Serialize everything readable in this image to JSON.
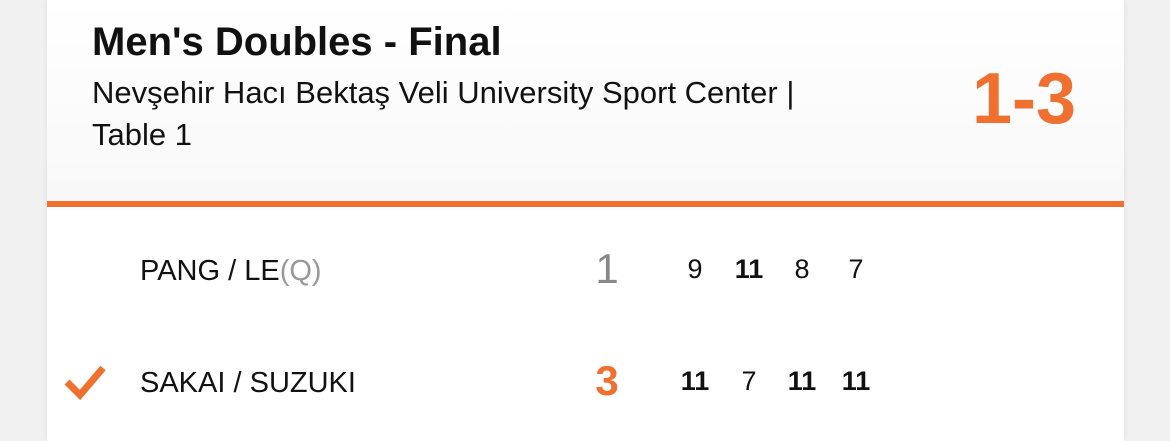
{
  "match": {
    "title": "Men's Doubles - Final",
    "venue": "Nevşehir Hacı Bektaş Veli University Sport Center | Table 1",
    "score": "1-3"
  },
  "accent_color": "#f07030",
  "rows": [
    {
      "name": "PANG / LE",
      "seed": "(Q)",
      "sets": "1",
      "winner": false,
      "games": [
        {
          "v": "9",
          "won": false
        },
        {
          "v": "11",
          "won": true
        },
        {
          "v": "8",
          "won": false
        },
        {
          "v": "7",
          "won": false
        }
      ]
    },
    {
      "name": "SAKAI / SUZUKI",
      "seed": "",
      "sets": "3",
      "winner": true,
      "winner_icon": "checkmark-icon",
      "games": [
        {
          "v": "11",
          "won": true
        },
        {
          "v": "7",
          "won": false
        },
        {
          "v": "11",
          "won": true
        },
        {
          "v": "11",
          "won": true
        }
      ]
    }
  ]
}
